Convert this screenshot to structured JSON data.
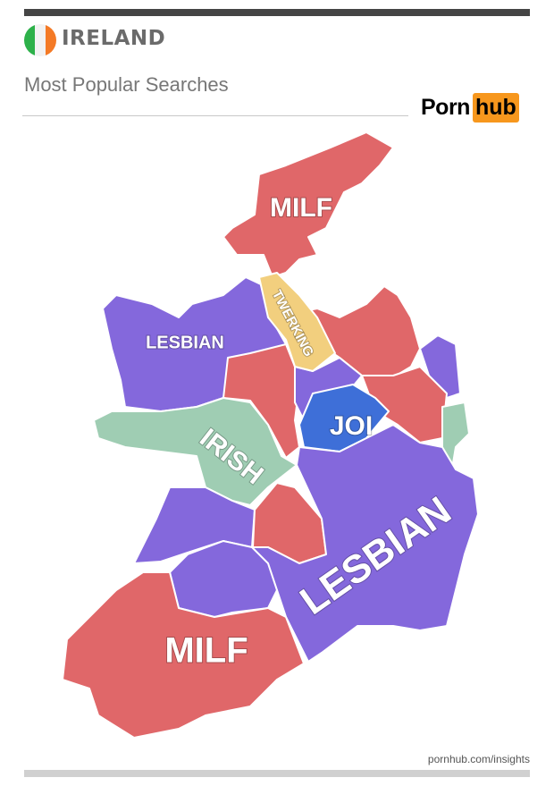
{
  "header": {
    "country": "IRELAND",
    "subtitle": "Most Popular Searches",
    "flag_colors": [
      "#2db14a",
      "#f2f2f2",
      "#f47a26"
    ],
    "logo": {
      "part1": "Porn",
      "part2": "hub",
      "accent": "#f7971d"
    }
  },
  "map": {
    "category_colors": {
      "MILF": "#e06769",
      "LESBIAN": "#8468dc",
      "IRISH": "#9fcdb3",
      "TWERKING": "#f2cf7e",
      "JOI": "#3e6fd8"
    },
    "labels": [
      {
        "text": "MILF"
      },
      {
        "text": "TWERKING"
      },
      {
        "text": "LESBIAN"
      },
      {
        "text": "JOI"
      },
      {
        "text": "IRISH"
      },
      {
        "text": "LESBIAN"
      },
      {
        "text": "MILF"
      }
    ]
  },
  "footer": {
    "source": "pornhub.com/insights"
  }
}
